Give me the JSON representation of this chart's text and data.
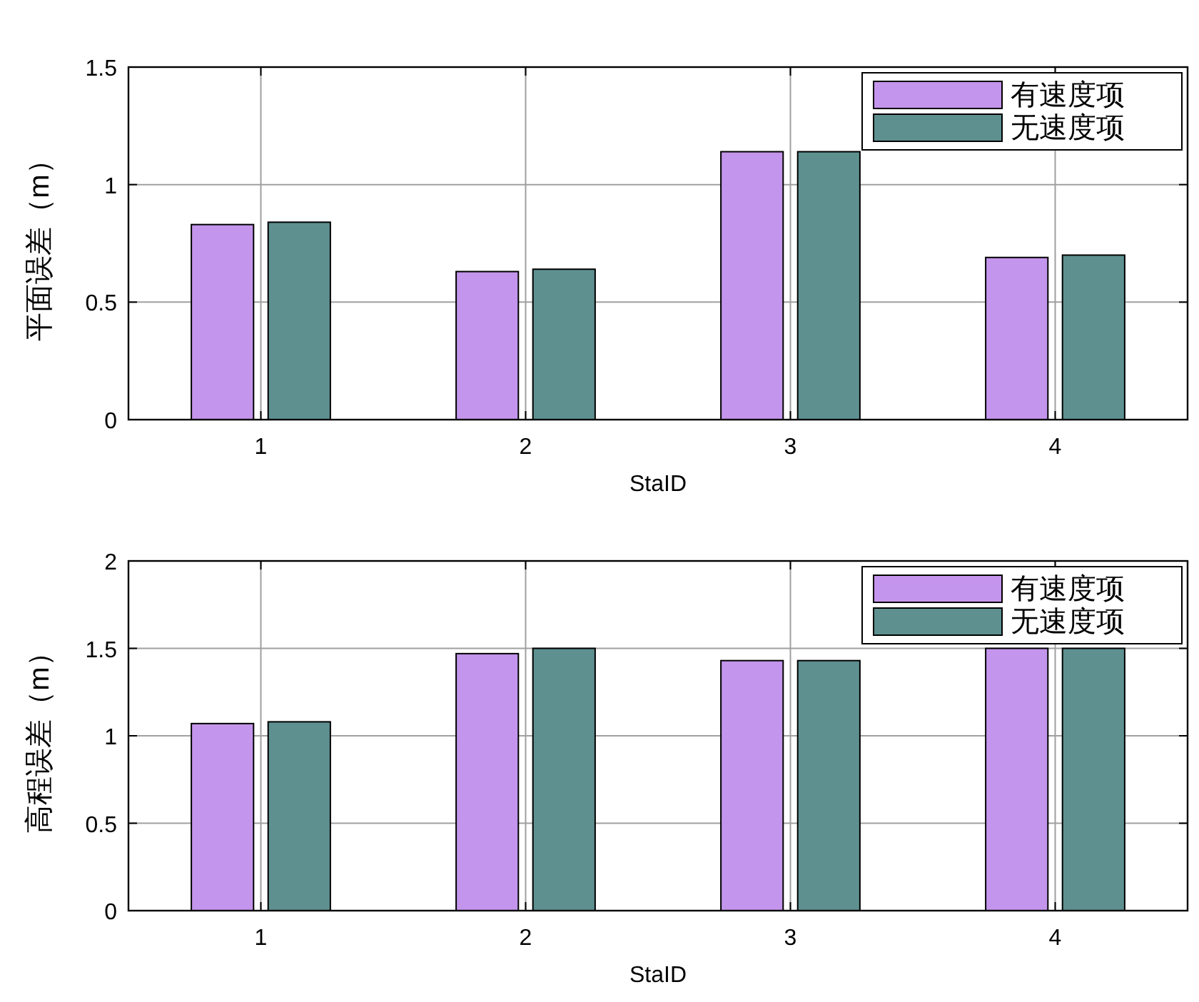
{
  "chart_data": [
    {
      "type": "bar",
      "xlabel": "StaID",
      "ylabel": "平面误差（m）",
      "categories": [
        "1",
        "2",
        "3",
        "4"
      ],
      "series": [
        {
          "name": "有速度项",
          "color": "#c495ec",
          "values": [
            0.83,
            0.63,
            1.14,
            0.69
          ]
        },
        {
          "name": "无速度项",
          "color": "#5e9090",
          "values": [
            0.84,
            0.64,
            1.14,
            0.7
          ]
        }
      ],
      "ylim": [
        0,
        1.5
      ],
      "yticks": [
        0,
        0.5,
        1,
        1.5
      ],
      "grid": true,
      "legend": "top right"
    },
    {
      "type": "bar",
      "xlabel": "StaID",
      "ylabel": "高程误差（m）",
      "categories": [
        "1",
        "2",
        "3",
        "4"
      ],
      "series": [
        {
          "name": "有速度项",
          "color": "#c495ec",
          "values": [
            1.07,
            1.47,
            1.43,
            1.5
          ]
        },
        {
          "name": "无速度项",
          "color": "#5e9090",
          "values": [
            1.08,
            1.5,
            1.43,
            1.5
          ]
        }
      ],
      "ylim": [
        0,
        2
      ],
      "yticks": [
        0,
        0.5,
        1,
        1.5,
        2
      ],
      "grid": true,
      "legend": "top right"
    }
  ]
}
